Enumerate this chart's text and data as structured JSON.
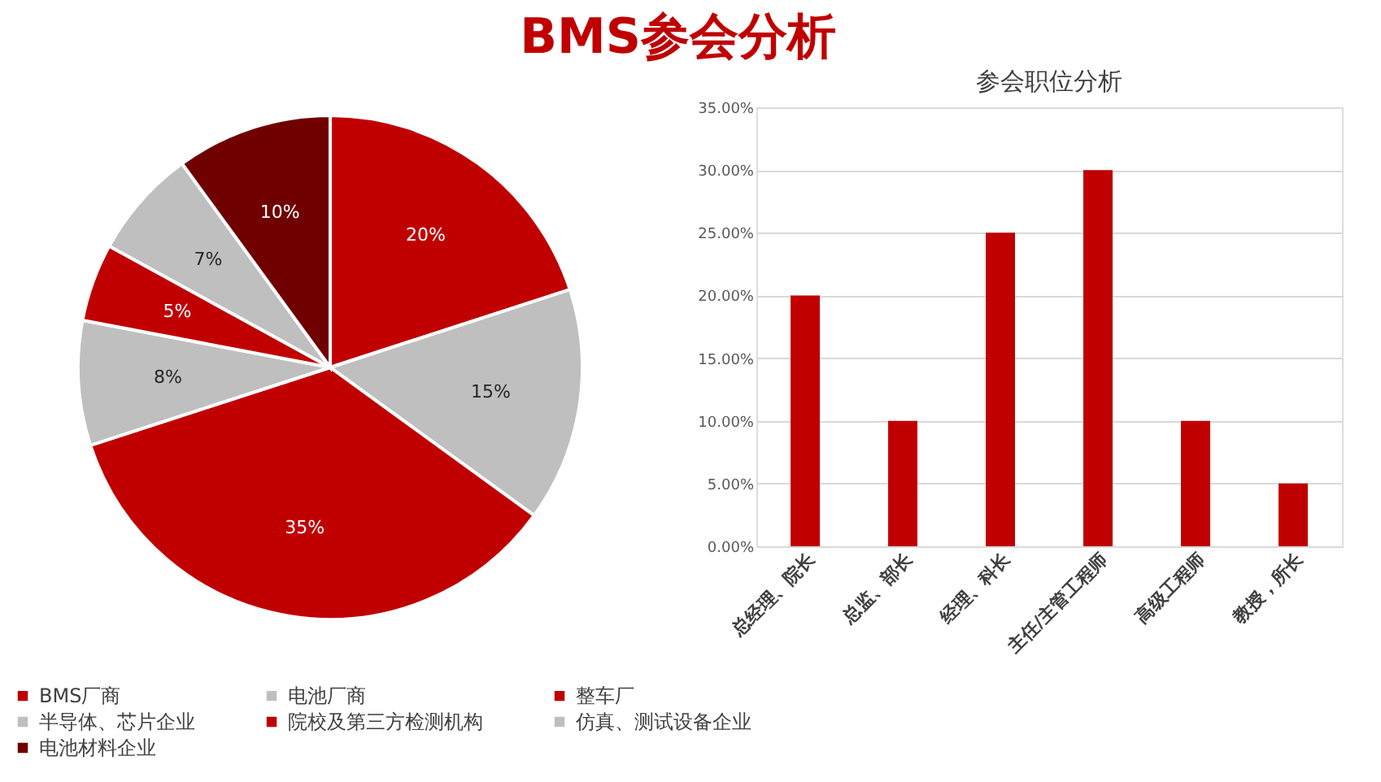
{
  "chart_data": [
    {
      "type": "pie",
      "title": "BMS参会分析",
      "categories": [
        "BMS厂商",
        "电池厂商",
        "整车厂",
        "半导体、芯片企业",
        "院校及第三方检测机构",
        "仿真、测试设备企业",
        "电池材料企业"
      ],
      "values": [
        20,
        15,
        35,
        8,
        5,
        7,
        10
      ],
      "value_labels": [
        "20%",
        "15%",
        "35%",
        "8%",
        "5%",
        "7%",
        "10%"
      ],
      "colors": [
        "#c00000",
        "#bfbfbf",
        "#c00000",
        "#bfbfbf",
        "#c00000",
        "#bfbfbf",
        "#700000"
      ],
      "legend": "bottom"
    },
    {
      "type": "bar",
      "title": "参会职位分析",
      "categories": [
        "总经理、院长",
        "总监、部长",
        "经理、科长",
        "主任/主管工程师",
        "高级工程师",
        "教授，所长"
      ],
      "values": [
        20,
        10,
        25,
        30,
        10,
        5
      ],
      "color": "#c00000",
      "ylim": [
        0,
        35
      ],
      "yticks": [
        {
          "value": 0,
          "label": "0.00%"
        },
        {
          "value": 5,
          "label": "5.00%"
        },
        {
          "value": 10,
          "label": "10.00%"
        },
        {
          "value": 15,
          "label": "15.00%"
        },
        {
          "value": 20,
          "label": "20.00%"
        },
        {
          "value": 25,
          "label": "25.00%"
        },
        {
          "value": 30,
          "label": "30.00%"
        },
        {
          "value": 35,
          "label": "35.00%"
        }
      ],
      "grid": "y"
    }
  ]
}
